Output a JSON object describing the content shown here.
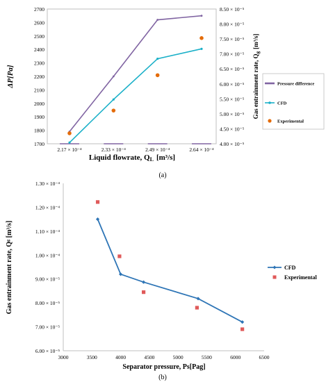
{
  "chart_data": [
    {
      "type": "line",
      "panel_label": "(a)",
      "xlabel_main": "Liquid flowrate, Q",
      "xlabel_sub": "L",
      "xlabel_unit": "[m³/s]",
      "ylabel_left": "ΔP[Pa]",
      "ylabel_right_main": "Gas entrainment rate, Q",
      "ylabel_right_sub": "g",
      "ylabel_right_unit": "[m³/s]",
      "categories": [
        "2.17 × 10⁻⁴",
        "2.33 × 10⁻⁴",
        "2.49 × 10⁻⁴",
        "2.64 × 10⁻⁴"
      ],
      "ylim_left": [
        1700,
        2700
      ],
      "yticks_left": [
        "1700",
        "1800",
        "1900",
        "2000",
        "2100",
        "2200",
        "2300",
        "2400",
        "2500",
        "2600",
        "2700"
      ],
      "ylim_right": [
        4.0,
        8.5
      ],
      "yticks_right": [
        "4.00 × 10⁻⁵",
        "4.50 × 10⁻⁵",
        "5.00 × 10⁻⁵",
        "5.50 × 10⁻⁵",
        "6.00 × 10⁻⁵",
        "6.50 × 10⁻⁵",
        "7.00 × 10⁻⁵",
        "7.50 × 10⁻⁵",
        "8.00 × 10⁻⁵",
        "8.50 × 10⁻⁵"
      ],
      "grid": false,
      "legend_position": "right",
      "series": [
        {
          "name": "Pressure difference",
          "axis": "left",
          "style": "line",
          "color": "#8064a2",
          "values": [
            1790,
            2200,
            2620,
            2650
          ]
        },
        {
          "name": "CFD",
          "axis": "right",
          "style": "line-marker",
          "color": "#1ab0c8",
          "values": [
            4.04,
            5.48,
            6.84,
            7.17
          ]
        },
        {
          "name": "Experimental",
          "axis": "right",
          "style": "marker",
          "color": "#e46c0a",
          "values": [
            4.35,
            5.11,
            6.29,
            7.53
          ]
        }
      ]
    },
    {
      "type": "line",
      "panel_label": "(b)",
      "xlabel": "Separator pressure, Ps[Pag]",
      "ylabel": "Gas entrainment rate, Qᵍ [m³/s]",
      "xlim": [
        3000,
        6500
      ],
      "xticks": [
        "3000",
        "3500",
        "4000",
        "4500",
        "5000",
        "5500",
        "6000",
        "6500"
      ],
      "ylim": [
        6.0,
        13.0
      ],
      "yticks": [
        "6.00 × 10⁻⁵",
        "7.00 × 10⁻⁵",
        "8.00 × 10⁻⁵",
        "9.00 × 10⁻⁵",
        "1.00 × 10⁻⁴",
        "1.10 × 10⁻⁴",
        "1.20 × 10⁻⁴",
        "1.30 × 10⁻⁴"
      ],
      "grid": false,
      "legend_position": "right",
      "series": [
        {
          "name": "CFD",
          "style": "line-marker",
          "color": "#2e75b6",
          "x": [
            3600,
            4000,
            4400,
            5350,
            6120
          ],
          "values": [
            11.5,
            9.2,
            8.87,
            8.18,
            7.2
          ]
        },
        {
          "name": "Experimental",
          "style": "marker",
          "color": "#e05a5a",
          "x": [
            3600,
            3980,
            4400,
            5330,
            6120
          ],
          "values": [
            12.22,
            9.95,
            8.45,
            7.8,
            6.9
          ]
        }
      ]
    }
  ]
}
